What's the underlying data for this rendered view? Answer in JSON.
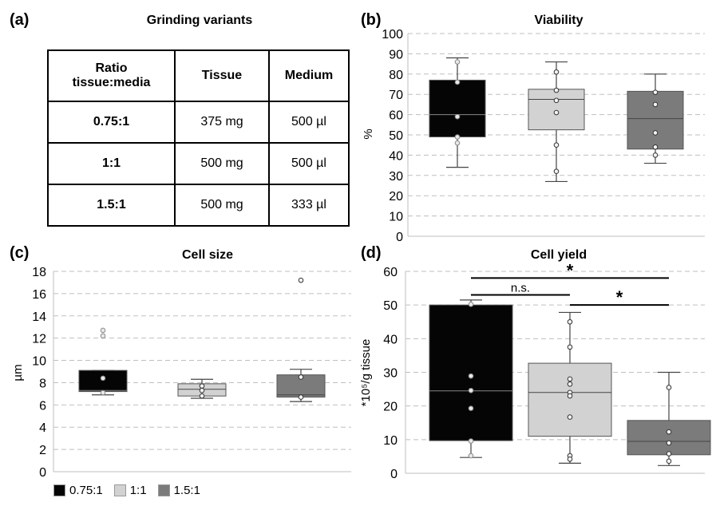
{
  "colors": {
    "s075": "#050505",
    "s1": "#d2d2d2",
    "s15": "#7b7b7b",
    "grid": "#bfbfbf"
  },
  "panel_a": {
    "label": "(a)",
    "title": "Grinding variants",
    "headers": [
      "Ratio tissue:media",
      "Tissue",
      "Medium"
    ],
    "rows": [
      [
        "0.75:1",
        "375 mg",
        "500 µl"
      ],
      [
        "1:1",
        "500 mg",
        "500 µl"
      ],
      [
        "1.5:1",
        "500 mg",
        "333 µl"
      ]
    ]
  },
  "legend": [
    {
      "label": "0.75:1",
      "color": "#050505"
    },
    {
      "label": "1:1",
      "color": "#d2d2d2"
    },
    {
      "label": "1.5:1",
      "color": "#7b7b7b"
    }
  ],
  "chart_data": [
    {
      "id": "b",
      "panel_label": "(b)",
      "type": "box",
      "title": "Viability",
      "xlabel": "",
      "ylabel": "%",
      "ylim": [
        0,
        100
      ],
      "ytick_step": 10,
      "grid": true,
      "series": [
        {
          "name": "0.75:1",
          "q1": 49,
          "median": 60,
          "q3": 77,
          "whisker_low": 34,
          "whisker_high": 88,
          "points": [
            86,
            76,
            59,
            49,
            46
          ]
        },
        {
          "name": "1:1",
          "q1": 52.5,
          "median": 67.5,
          "q3": 72.5,
          "whisker_low": 27,
          "whisker_high": 86,
          "points": [
            81,
            72,
            67,
            61,
            45,
            32
          ]
        },
        {
          "name": "1.5:1",
          "q1": 43,
          "median": 58,
          "q3": 71.5,
          "whisker_low": 36,
          "whisker_high": 80,
          "points": [
            71,
            65,
            51,
            44,
            40
          ]
        }
      ]
    },
    {
      "id": "c",
      "panel_label": "(c)",
      "type": "box",
      "title": "Cell size",
      "xlabel": "",
      "ylabel": "µm",
      "ylim": [
        0,
        18
      ],
      "ytick_step": 2,
      "grid": true,
      "series": [
        {
          "name": "0.75:1",
          "q1": 7.2,
          "median": 7.3,
          "q3": 9.1,
          "whisker_low": 6.9,
          "whisker_high": 9.1,
          "points": [
            12.7,
            12.2,
            8.4,
            7.1
          ]
        },
        {
          "name": "1:1",
          "q1": 6.8,
          "median": 7.4,
          "q3": 7.9,
          "whisker_low": 6.6,
          "whisker_high": 8.3,
          "points": [
            7.7,
            7.3,
            6.8
          ]
        },
        {
          "name": "1.5:1",
          "q1": 6.7,
          "median": 6.9,
          "q3": 8.7,
          "whisker_low": 6.3,
          "whisker_high": 9.2,
          "points": [
            17.2,
            8.5,
            6.7
          ]
        }
      ]
    },
    {
      "id": "d",
      "panel_label": "(d)",
      "type": "box",
      "title": "Cell yield",
      "xlabel": "",
      "ylabel": "*10⁵/g tissue",
      "ylim": [
        0,
        60
      ],
      "ytick_step": 10,
      "grid": true,
      "series": [
        {
          "name": "0.75:1",
          "q1": 9.7,
          "median": 24.5,
          "q3": 50,
          "whisker_low": 4.7,
          "whisker_high": 51.5,
          "points": [
            50.2,
            28.9,
            24.6,
            19.3,
            9.6,
            5.2
          ]
        },
        {
          "name": "1:1",
          "q1": 11,
          "median": 24,
          "q3": 32.7,
          "whisker_low": 3,
          "whisker_high": 47.8,
          "points": [
            45,
            37.5,
            28,
            26.5,
            24,
            23,
            16.7,
            5.2,
            4.2
          ]
        },
        {
          "name": "1.5:1",
          "q1": 5.5,
          "median": 9.5,
          "q3": 15.7,
          "whisker_low": 2.3,
          "whisker_high": 30,
          "points": [
            25.5,
            12.3,
            9,
            5.8,
            3.6
          ]
        }
      ],
      "annotations": [
        {
          "from": "0.75:1",
          "to": "1:1",
          "y": 53,
          "label": "n.s."
        },
        {
          "from": "0.75:1",
          "to": "1.5:1",
          "y": 58,
          "label": "*"
        },
        {
          "from": "1:1",
          "to": "1.5:1",
          "y": 50,
          "label": "*"
        }
      ]
    }
  ]
}
